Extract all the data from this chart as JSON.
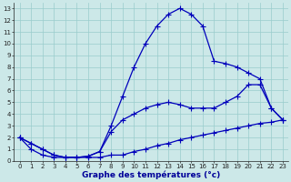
{
  "bg_color": "#cce8e8",
  "grid_color": "#99cccc",
  "line_color": "#0000bb",
  "xlabel": "Graphe des températures (°c)",
  "hours": [
    0,
    1,
    2,
    3,
    4,
    5,
    6,
    7,
    8,
    9,
    10,
    11,
    12,
    13,
    14,
    15,
    16,
    17,
    18,
    19,
    20,
    21,
    22,
    23
  ],
  "top_curve": [
    2.0,
    1.5,
    1.0,
    0.5,
    0.3,
    0.3,
    0.4,
    0.8,
    3.0,
    5.5,
    8.0,
    10.0,
    11.5,
    12.5,
    13.0,
    12.5,
    11.5,
    8.5,
    8.3,
    8.0,
    7.5,
    7.0,
    4.5,
    3.5
  ],
  "mid_curve": [
    2.0,
    1.5,
    1.0,
    0.5,
    0.3,
    0.3,
    0.4,
    0.8,
    2.5,
    3.5,
    4.0,
    4.5,
    4.8,
    5.0,
    4.8,
    4.5,
    4.5,
    4.5,
    5.0,
    5.5,
    6.5,
    6.5,
    4.5,
    3.5
  ],
  "bot_curve": [
    2.0,
    1.0,
    0.5,
    0.3,
    0.3,
    0.3,
    0.3,
    0.3,
    0.5,
    0.5,
    0.8,
    1.0,
    1.3,
    1.5,
    1.8,
    2.0,
    2.2,
    2.4,
    2.6,
    2.8,
    3.0,
    3.2,
    3.3,
    3.5
  ],
  "xlim": [
    -0.5,
    23.5
  ],
  "ylim": [
    0,
    13.5
  ],
  "xlabel_fontsize": 6.5,
  "tick_fontsize": 5.0,
  "linewidth": 0.9,
  "markersize": 2.5
}
